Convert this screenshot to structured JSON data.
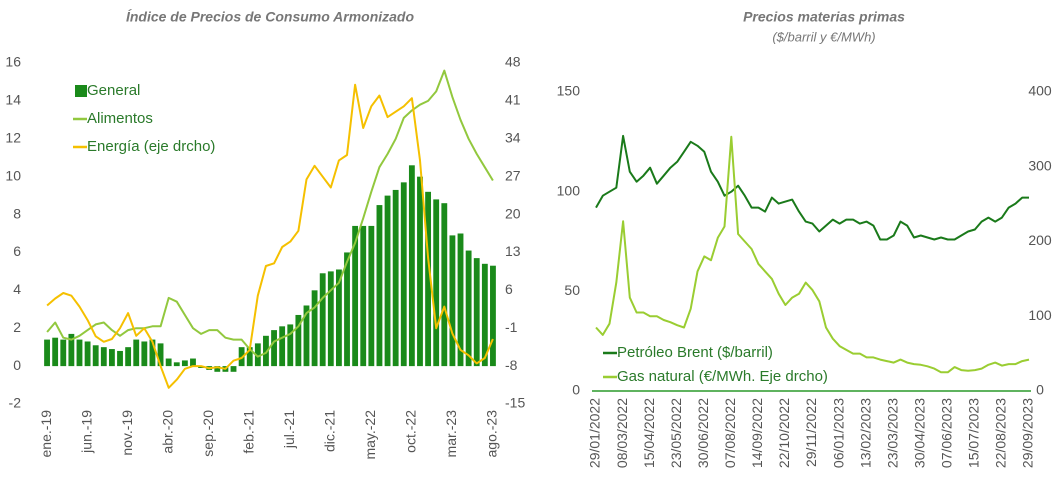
{
  "chart_data": [
    {
      "type": "bar",
      "title": "Índice de Precios de Consumo Armonizado",
      "categories": [
        "ene.-19",
        null,
        null,
        null,
        null,
        "jun.-19",
        null,
        null,
        null,
        null,
        "nov.-19",
        null,
        null,
        null,
        null,
        "abr.-20",
        null,
        null,
        null,
        null,
        "sep.-20",
        null,
        null,
        null,
        null,
        "feb.-21",
        null,
        null,
        null,
        null,
        "jul.-21",
        null,
        null,
        null,
        null,
        "dic.-21",
        null,
        null,
        null,
        null,
        "may.-22",
        null,
        null,
        null,
        null,
        "oct.-22",
        null,
        null,
        null,
        null,
        "mar.-23",
        null,
        null,
        null,
        null,
        "ago.-23"
      ],
      "series": [
        {
          "name": "General",
          "type": "bar",
          "color": "#1a8a1a",
          "values": [
            1.4,
            1.5,
            1.4,
            1.7,
            1.4,
            1.3,
            1.1,
            1.0,
            0.9,
            0.8,
            1.0,
            1.4,
            1.3,
            1.4,
            1.2,
            0.4,
            0.2,
            0.3,
            0.4,
            -0.1,
            -0.2,
            -0.3,
            -0.3,
            -0.3,
            1.0,
            1.0,
            1.2,
            1.6,
            1.9,
            2.1,
            2.2,
            2.7,
            3.2,
            4.0,
            4.9,
            5.0,
            5.1,
            6.0,
            7.4,
            7.4,
            7.4,
            8.5,
            9.0,
            9.3,
            9.7,
            10.6,
            10.0,
            9.2,
            8.8,
            8.6,
            6.9,
            7.0,
            6.1,
            5.7,
            5.4,
            5.3
          ]
        },
        {
          "name": "Alimentos",
          "type": "line",
          "color": "#92c83e",
          "values": [
            1.8,
            2.3,
            1.5,
            1.4,
            1.6,
            1.9,
            2.2,
            2.3,
            1.9,
            1.6,
            1.9,
            2.0,
            2.0,
            2.1,
            2.1,
            3.6,
            3.4,
            2.7,
            2.0,
            1.7,
            1.9,
            1.9,
            1.5,
            1.4,
            1.4,
            0.9,
            0.5,
            0.7,
            1.3,
            1.5,
            1.7,
            2.1,
            2.8,
            3.1,
            3.6,
            4.0,
            4.4,
            5.5,
            6.5,
            7.8,
            9.2,
            10.5,
            11.2,
            12.0,
            13.1,
            13.5,
            13.8,
            14.0,
            14.5,
            15.6,
            14.2,
            13.0,
            12.0,
            11.2,
            10.5,
            9.8
          ]
        },
        {
          "name": "Energía (eje drcho)",
          "type": "line",
          "axis": "y2",
          "color": "#f5c000",
          "values": [
            3.2,
            4.5,
            5.5,
            5.0,
            3.0,
            0.5,
            -2.5,
            -3.5,
            -3.0,
            -1.0,
            1.8,
            -2.4,
            -1.0,
            -3.5,
            -8.0,
            -12.0,
            -10.5,
            -8.5,
            -8.0,
            -8.0,
            -8.4,
            -8.2,
            -8.5,
            -7.0,
            -6.5,
            -5.0,
            5.0,
            10.5,
            11.0,
            14.0,
            15.0,
            17.0,
            26.5,
            29.0,
            27.0,
            25.0,
            30.0,
            31.0,
            44.0,
            36.0,
            40.0,
            42.0,
            38.0,
            39.0,
            40.0,
            41.5,
            30.0,
            12.0,
            -1.0,
            3.0,
            -2.0,
            -5.0,
            -6.0,
            -7.5,
            -6.5,
            -3.0
          ]
        }
      ],
      "ylim": [
        -2,
        16
      ],
      "yticks": [
        -2,
        0,
        2,
        4,
        6,
        8,
        10,
        12,
        14,
        16
      ],
      "y2lim": [
        -15,
        48
      ],
      "y2ticks": [
        -15,
        -8,
        -1,
        6,
        13,
        20,
        27,
        34,
        41,
        48
      ],
      "legend": "upper left",
      "grid": false
    },
    {
      "type": "line",
      "title": "Precios materias primas",
      "subtitle": "($/barril y €/MWh)",
      "categories": [
        "29/01/2022",
        null,
        null,
        null,
        "08/03/2022",
        null,
        null,
        null,
        "15/04/2022",
        null,
        null,
        null,
        "23/05/2022",
        null,
        null,
        null,
        "30/06/2022",
        null,
        null,
        null,
        "07/08/2022",
        null,
        null,
        null,
        "14/09/2022",
        null,
        null,
        null,
        "22/10/2022",
        null,
        null,
        null,
        "29/11/2022",
        null,
        null,
        null,
        "06/01/2023",
        null,
        null,
        null,
        "13/02/2023",
        null,
        null,
        null,
        "23/03/2023",
        null,
        null,
        null,
        "30/04/2023",
        null,
        null,
        null,
        "07/06/2023",
        null,
        null,
        null,
        "15/07/2023",
        null,
        null,
        null,
        "22/08/2023",
        null,
        null,
        null,
        "29/09/2023"
      ],
      "series": [
        {
          "name": "Petróleo Brent ($/barril)",
          "color": "#1a7a1a",
          "values": [
            92,
            98,
            100,
            102,
            128,
            110,
            105,
            108,
            112,
            104,
            108,
            112,
            115,
            120,
            125,
            123,
            120,
            110,
            105,
            98,
            100,
            103,
            98,
            92,
            92,
            90,
            97,
            94,
            95,
            96,
            90,
            85,
            84,
            80,
            83,
            86,
            84,
            86,
            86,
            84,
            85,
            83,
            76,
            76,
            78,
            85,
            83,
            77,
            78,
            77,
            76,
            77,
            76,
            76,
            78,
            80,
            81,
            85,
            87,
            85,
            87,
            92,
            94,
            97,
            97
          ]
        },
        {
          "name": "Gas natural (€/MWh. Eje drcho)",
          "axis": "y2",
          "color": "#9acd32",
          "values": [
            85,
            75,
            90,
            145,
            227,
            125,
            105,
            105,
            100,
            100,
            95,
            92,
            88,
            85,
            110,
            160,
            180,
            175,
            205,
            220,
            340,
            210,
            200,
            190,
            170,
            160,
            150,
            130,
            115,
            125,
            130,
            145,
            135,
            120,
            85,
            70,
            60,
            55,
            50,
            50,
            45,
            45,
            42,
            40,
            38,
            42,
            38,
            36,
            35,
            33,
            30,
            25,
            25,
            32,
            28,
            27,
            28,
            30,
            35,
            38,
            34,
            36,
            36,
            40,
            42
          ]
        }
      ],
      "ylim": [
        0,
        150
      ],
      "yticks": [
        0,
        50,
        100,
        150
      ],
      "y2lim": [
        0,
        400
      ],
      "y2ticks": [
        0,
        100,
        200,
        300,
        400
      ],
      "legend": "lower left",
      "grid": false
    }
  ]
}
